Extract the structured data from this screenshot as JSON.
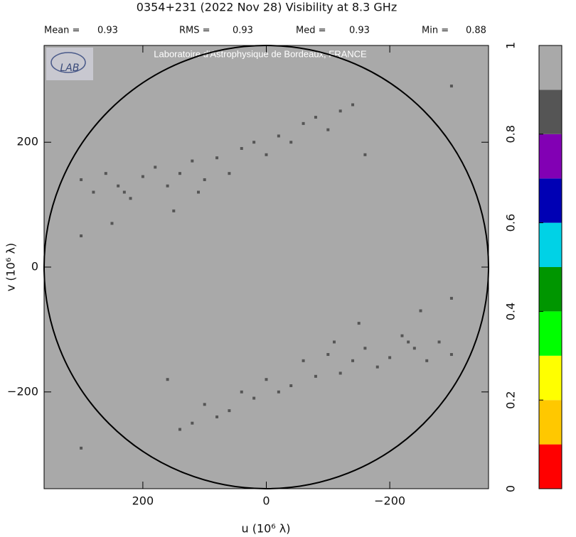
{
  "chart_data": {
    "type": "scatter",
    "title": "0354+231   (2022 Nov 28)    Visibility at  8.3 GHz",
    "stats": [
      {
        "label": "Mean =",
        "value": 0.93
      },
      {
        "label": "RMS =",
        "value": 0.93
      },
      {
        "label": "Med =",
        "value": 0.93
      },
      {
        "label": "Min =",
        "value": 0.88
      }
    ],
    "logo_text": "LAB",
    "watermark": "Laboratoire d'Astrophysique de Bordeaux, FRANCE",
    "x_label": "u  (10⁶ λ)",
    "y_label": "v  (10⁶ λ)",
    "xlim": [
      360,
      -360
    ],
    "ylim": [
      -355,
      355
    ],
    "xticks": [
      200,
      0,
      {
        "value": -200,
        "label": "−200"
      }
    ],
    "yticks": [
      {
        "value": -200,
        "label": "−200"
      },
      0,
      200
    ],
    "background_color": "#a9a9a9",
    "point_color": "#555555",
    "x": [
      300,
      280,
      260,
      240,
      220,
      200,
      180,
      160,
      140,
      120,
      100,
      80,
      60,
      40,
      20,
      0,
      -20,
      -40,
      -60,
      -80,
      -100,
      -120,
      -140,
      300,
      250,
      150,
      -160,
      -300,
      230,
      110,
      -300,
      -280,
      -260,
      -240,
      -220,
      -200,
      -180,
      -160,
      -140,
      -120,
      -100,
      -80,
      -60,
      -40,
      -20,
      0,
      20,
      40,
      60,
      80,
      100,
      120,
      140,
      -300,
      -250,
      -150,
      160,
      300,
      -230,
      -110
    ],
    "y": [
      140,
      120,
      150,
      130,
      110,
      145,
      160,
      130,
      150,
      170,
      140,
      175,
      150,
      190,
      200,
      180,
      210,
      200,
      230,
      240,
      220,
      250,
      260,
      50,
      70,
      90,
      180,
      290,
      120,
      120,
      -140,
      -120,
      -150,
      -130,
      -110,
      -145,
      -160,
      -130,
      -150,
      -170,
      -140,
      -175,
      -150,
      -190,
      -200,
      -180,
      -210,
      -200,
      -230,
      -240,
      -220,
      -250,
      -260,
      -50,
      -70,
      -90,
      -180,
      -290,
      -120,
      -120
    ],
    "colorbar": {
      "lim": [
        0,
        1
      ],
      "ticks": [
        0,
        0.2,
        0.4,
        0.6,
        0.8,
        1
      ],
      "colors": [
        "#ff0000",
        "#ffc800",
        "#ffff00",
        "#00ff00",
        "#009600",
        "#00d2e6",
        "#0000b4",
        "#8200b4",
        "#555555",
        "#a9a9a9"
      ]
    }
  }
}
